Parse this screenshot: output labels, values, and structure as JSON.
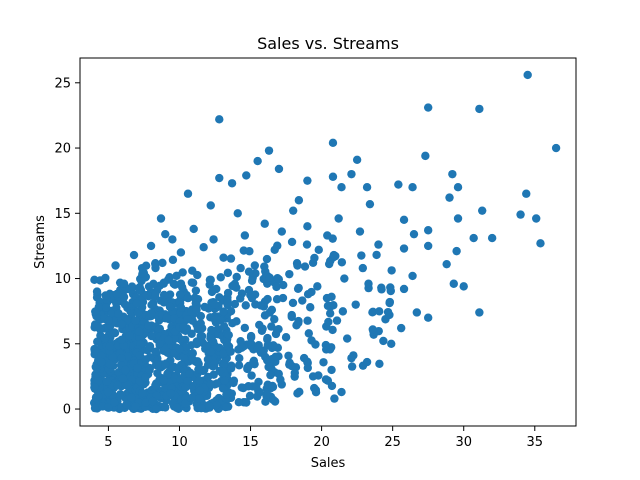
{
  "chart_data": {
    "type": "scatter",
    "title": "Sales vs. Streams",
    "xlabel": "Sales",
    "ylabel": "Streams",
    "xlim": [
      3.0,
      37.9
    ],
    "ylim": [
      -1.3,
      26.9
    ],
    "xticks": [
      5,
      10,
      15,
      20,
      25,
      30,
      35
    ],
    "yticks": [
      0,
      5,
      10,
      15,
      20,
      25
    ],
    "point_color": "#1f77b4",
    "grid": false,
    "legend": "none",
    "series": [
      {
        "name": "Streams",
        "points": [
          [
            34.5,
            25.6
          ],
          [
            36.5,
            20.0
          ],
          [
            31.1,
            23.0
          ],
          [
            27.5,
            23.1
          ],
          [
            12.8,
            22.2
          ],
          [
            20.8,
            20.4
          ],
          [
            16.3,
            19.8
          ],
          [
            22.5,
            19.1
          ],
          [
            15.5,
            19.0
          ],
          [
            27.3,
            19.4
          ],
          [
            29.2,
            18.0
          ],
          [
            29.6,
            17.0
          ],
          [
            29.0,
            16.2
          ],
          [
            34.4,
            16.5
          ],
          [
            34.0,
            14.9
          ],
          [
            35.1,
            14.6
          ],
          [
            35.4,
            12.7
          ],
          [
            32.0,
            13.1
          ],
          [
            31.3,
            15.2
          ],
          [
            29.6,
            14.6
          ],
          [
            30.7,
            13.1
          ],
          [
            29.5,
            12.1
          ],
          [
            31.1,
            7.4
          ],
          [
            30.0,
            9.4
          ],
          [
            29.3,
            9.6
          ],
          [
            27.5,
            7.0
          ],
          [
            28.8,
            11.1
          ],
          [
            27.5,
            12.5
          ],
          [
            27.5,
            13.7
          ],
          [
            26.5,
            13.4
          ],
          [
            26.4,
            17.0
          ],
          [
            25.4,
            17.2
          ],
          [
            25.8,
            14.5
          ],
          [
            25.8,
            12.3
          ],
          [
            26.4,
            10.2
          ],
          [
            25.8,
            9.2
          ],
          [
            26.7,
            7.4
          ],
          [
            25.6,
            6.2
          ],
          [
            24.8,
            8.2
          ],
          [
            23.3,
            9.6
          ],
          [
            24.0,
            12.6
          ],
          [
            23.4,
            15.7
          ],
          [
            23.2,
            17.0
          ],
          [
            22.1,
            18.0
          ],
          [
            21.4,
            17.0
          ],
          [
            20.8,
            17.8
          ],
          [
            19.0,
            17.5
          ],
          [
            18.4,
            16.0
          ],
          [
            17.0,
            18.4
          ],
          [
            14.7,
            17.9
          ],
          [
            13.7,
            17.3
          ],
          [
            12.8,
            17.7
          ],
          [
            12.2,
            15.6
          ],
          [
            10.6,
            16.5
          ],
          [
            9.0,
            13.4
          ],
          [
            8.7,
            14.6
          ],
          [
            14.1,
            15.0
          ],
          [
            18.0,
            15.2
          ],
          [
            21.2,
            14.6
          ],
          [
            22.7,
            13.6
          ],
          [
            20.4,
            13.3
          ],
          [
            19.8,
            12.2
          ],
          [
            18.3,
            11.0
          ],
          [
            16.7,
            12.2
          ],
          [
            15.3,
            11.0
          ],
          [
            17.3,
            9.5
          ],
          [
            19.7,
            9.4
          ],
          [
            21.6,
            10.0
          ],
          [
            22.9,
            10.8
          ],
          [
            24.2,
            9.3
          ],
          [
            22.4,
            8.0
          ],
          [
            20.7,
            8.6
          ],
          [
            19.2,
            7.8
          ],
          [
            17.9,
            7.2
          ],
          [
            16.5,
            7.6
          ],
          [
            15.1,
            8.5
          ],
          [
            14.0,
            9.3
          ],
          [
            13.4,
            8.1
          ],
          [
            15.8,
            6.0
          ],
          [
            17.5,
            5.5
          ],
          [
            19.1,
            5.8
          ],
          [
            20.3,
            4.9
          ],
          [
            21.8,
            5.4
          ],
          [
            23.6,
            6.1
          ],
          [
            24.9,
            5.0
          ],
          [
            22.1,
            3.9
          ],
          [
            23.2,
            3.6
          ],
          [
            20.7,
            3.0
          ],
          [
            19.4,
            2.5
          ],
          [
            17.9,
            3.3
          ],
          [
            16.4,
            2.6
          ],
          [
            15.2,
            3.6
          ],
          [
            13.8,
            2.0
          ],
          [
            15.4,
            1.7
          ],
          [
            16.6,
            0.7
          ],
          [
            18.3,
            1.2
          ],
          [
            20.9,
            0.8
          ],
          [
            21.4,
            1.3
          ],
          [
            14.7,
            0.5
          ],
          [
            13.3,
            1.1
          ],
          [
            12.6,
            0.3
          ],
          [
            11.4,
            0.8
          ],
          [
            10.4,
            0.4
          ],
          [
            9.4,
            1.2
          ],
          [
            8.1,
            0.6
          ],
          [
            6.6,
            0.9
          ],
          [
            5.4,
            0.5
          ],
          [
            4.6,
            0.2
          ],
          [
            4.9,
            2.1
          ],
          [
            6.2,
            3.0
          ],
          [
            7.6,
            2.4
          ],
          [
            9.0,
            3.4
          ],
          [
            10.7,
            2.7
          ],
          [
            12.0,
            3.8
          ],
          [
            11.5,
            5.6
          ],
          [
            10.3,
            6.3
          ],
          [
            9.1,
            7.0
          ],
          [
            7.8,
            6.4
          ],
          [
            6.5,
            5.6
          ],
          [
            5.1,
            4.8
          ],
          [
            4.4,
            6.2
          ],
          [
            5.7,
            7.3
          ],
          [
            7.0,
            8.1
          ],
          [
            8.3,
            8.8
          ],
          [
            9.6,
            9.6
          ],
          [
            10.9,
            10.6
          ],
          [
            12.2,
            9.9
          ],
          [
            13.1,
            11.6
          ],
          [
            11.7,
            12.4
          ],
          [
            10.1,
            12.0
          ],
          [
            8.8,
            11.2
          ],
          [
            7.4,
            10.4
          ],
          [
            6.1,
            9.6
          ],
          [
            4.8,
            8.7
          ],
          [
            4.2,
            9.0
          ],
          [
            5.5,
            11.0
          ],
          [
            6.8,
            11.8
          ],
          [
            8.0,
            12.5
          ],
          [
            9.5,
            13.0
          ],
          [
            11.0,
            13.8
          ],
          [
            12.4,
            13.0
          ],
          [
            14.6,
            13.3
          ],
          [
            16.0,
            14.2
          ],
          [
            17.2,
            13.6
          ],
          [
            19.0,
            14.0
          ],
          [
            6.3,
            1.8
          ],
          [
            7.2,
            4.1
          ],
          [
            8.6,
            5.0
          ],
          [
            10.0,
            4.6
          ],
          [
            11.2,
            7.6
          ],
          [
            12.9,
            6.8
          ],
          [
            14.3,
            5.2
          ],
          [
            13.6,
            4.4
          ],
          [
            5.9,
            6.5
          ],
          [
            4.5,
            3.6
          ],
          [
            4.3,
            1.0
          ],
          [
            5.0,
            0.1
          ],
          [
            6.9,
            0.2
          ],
          [
            9.8,
            0.1
          ],
          [
            12.1,
            0.2
          ],
          [
            7.9,
            3.0
          ],
          [
            8.9,
            2.2
          ],
          [
            10.6,
            8.5
          ],
          [
            12.5,
            8.0
          ],
          [
            9.3,
            10.1
          ]
        ]
      }
    ],
    "dense_regions": [
      {
        "x": [
          4.0,
          7.5
        ],
        "y": [
          0.0,
          10.5
        ],
        "count": 420
      },
      {
        "x": [
          7.0,
          10.5
        ],
        "y": [
          0.0,
          12.0
        ],
        "count": 300
      },
      {
        "x": [
          10.0,
          13.5
        ],
        "y": [
          0.0,
          11.0
        ],
        "count": 220
      },
      {
        "x": [
          13.0,
          17.0
        ],
        "y": [
          0.5,
          13.0
        ],
        "count": 110
      },
      {
        "x": [
          16.0,
          21.0
        ],
        "y": [
          1.0,
          14.0
        ],
        "count": 70
      },
      {
        "x": [
          20.0,
          25.0
        ],
        "y": [
          3.0,
          15.0
        ],
        "count": 35
      }
    ]
  }
}
